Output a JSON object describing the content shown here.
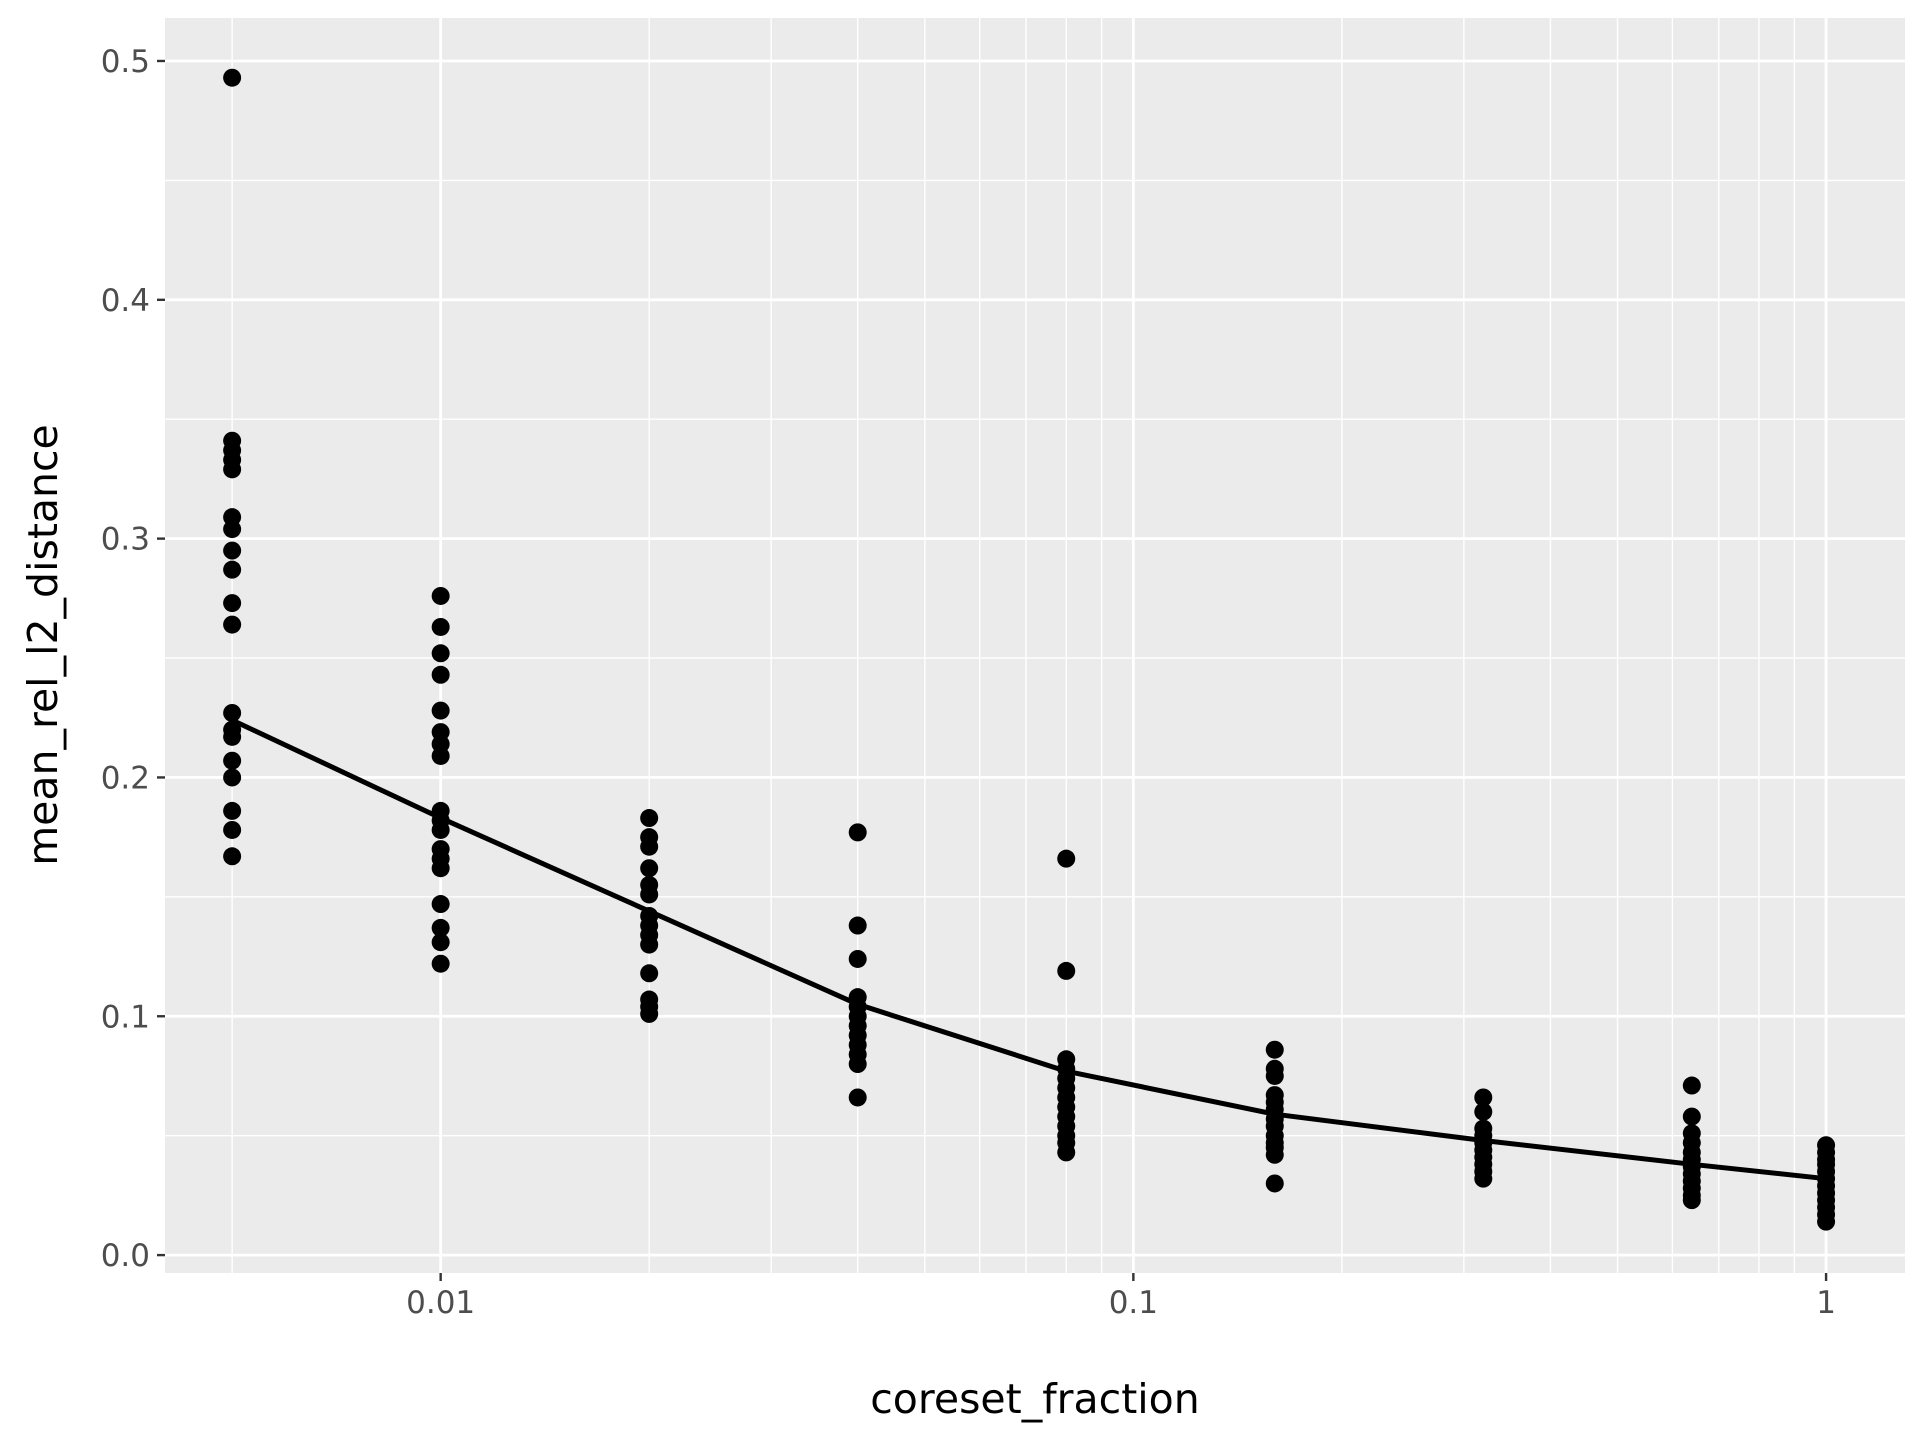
{
  "chart_data": {
    "type": "scatter",
    "xlabel": "coreset_fraction",
    "ylabel": "mean_rel_l2_distance",
    "x_scale": "log10",
    "xlim": [
      0.004,
      1.3
    ],
    "ylim": [
      -0.0075,
      0.518
    ],
    "grid": true,
    "colors": {
      "panel": "#ebebeb",
      "grid": "#ffffff",
      "point": "#000000",
      "line": "#000000",
      "tick_text": "#4d4d4d",
      "tick_mark": "#333333"
    },
    "x_major_ticks": [
      {
        "value": 0.01,
        "label": "0.01"
      },
      {
        "value": 0.1,
        "label": "0.1"
      },
      {
        "value": 1,
        "label": "1"
      }
    ],
    "x_minor_gridlines": [
      0.005,
      0.02,
      0.03,
      0.04,
      0.05,
      0.06,
      0.07,
      0.08,
      0.09,
      0.2,
      0.3,
      0.4,
      0.5,
      0.6,
      0.7,
      0.8,
      0.9
    ],
    "y_major_ticks": [
      {
        "value": 0.0,
        "label": "0.0"
      },
      {
        "value": 0.1,
        "label": "0.1"
      },
      {
        "value": 0.2,
        "label": "0.2"
      },
      {
        "value": 0.3,
        "label": "0.3"
      },
      {
        "value": 0.4,
        "label": "0.4"
      },
      {
        "value": 0.5,
        "label": "0.5"
      }
    ],
    "y_minor_gridlines": [
      0.05,
      0.15,
      0.25,
      0.35,
      0.45
    ],
    "points": [
      {
        "x": 0.005,
        "ys": [
          0.493,
          0.341,
          0.337,
          0.333,
          0.329,
          0.309,
          0.304,
          0.295,
          0.287,
          0.273,
          0.264,
          0.227,
          0.22,
          0.217,
          0.207,
          0.2,
          0.186,
          0.178,
          0.167
        ]
      },
      {
        "x": 0.01,
        "ys": [
          0.276,
          0.263,
          0.252,
          0.243,
          0.228,
          0.219,
          0.214,
          0.209,
          0.186,
          0.182,
          0.178,
          0.17,
          0.166,
          0.162,
          0.147,
          0.137,
          0.131,
          0.122
        ]
      },
      {
        "x": 0.02,
        "ys": [
          0.183,
          0.175,
          0.171,
          0.162,
          0.155,
          0.151,
          0.142,
          0.138,
          0.134,
          0.13,
          0.118,
          0.107,
          0.104,
          0.101
        ]
      },
      {
        "x": 0.04,
        "ys": [
          0.177,
          0.138,
          0.124,
          0.108,
          0.104,
          0.1,
          0.096,
          0.092,
          0.088,
          0.084,
          0.08,
          0.066
        ]
      },
      {
        "x": 0.08,
        "ys": [
          0.166,
          0.119,
          0.082,
          0.078,
          0.074,
          0.07,
          0.066,
          0.062,
          0.058,
          0.054,
          0.05,
          0.047,
          0.043
        ]
      },
      {
        "x": 0.16,
        "ys": [
          0.086,
          0.078,
          0.075,
          0.067,
          0.064,
          0.061,
          0.057,
          0.054,
          0.05,
          0.047,
          0.045,
          0.042,
          0.03
        ]
      },
      {
        "x": 0.32,
        "ys": [
          0.066,
          0.06,
          0.053,
          0.05,
          0.047,
          0.044,
          0.041,
          0.038,
          0.035,
          0.032
        ]
      },
      {
        "x": 0.64,
        "ys": [
          0.071,
          0.058,
          0.051,
          0.047,
          0.043,
          0.04,
          0.037,
          0.034,
          0.031,
          0.028,
          0.025,
          0.023
        ]
      },
      {
        "x": 1.0,
        "ys": [
          0.046,
          0.043,
          0.04,
          0.038,
          0.035,
          0.032,
          0.029,
          0.026,
          0.023,
          0.02,
          0.017,
          0.014
        ]
      }
    ],
    "trend_line": {
      "x": [
        0.005,
        0.01,
        0.02,
        0.04,
        0.08,
        0.16,
        0.32,
        0.64,
        1.0
      ],
      "y": [
        0.224,
        0.183,
        0.144,
        0.105,
        0.077,
        0.059,
        0.048,
        0.038,
        0.032
      ]
    }
  }
}
